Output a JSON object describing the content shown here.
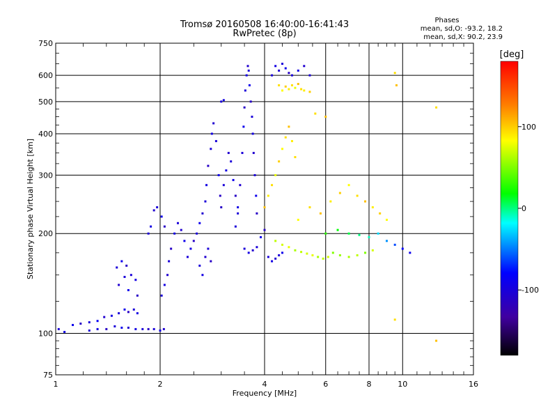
{
  "header": {
    "title_line1": "Tromsø 20160508 16:40:00-16:41:43",
    "title_line2": "RwPretec (8p)",
    "phases_title": "Phases",
    "phases_o": "mean, sd,O: -93.2, 18.2",
    "phases_x": "mean, sd,X: 90.2, 23.9"
  },
  "colorbar": {
    "label": "[deg]",
    "range": [
      -180,
      180
    ],
    "ticks": [
      {
        "value": 100,
        "label": "100"
      },
      {
        "value": 0,
        "label": "0"
      },
      {
        "value": -100,
        "label": "-100"
      }
    ],
    "colors": {
      "top": "#ff0000",
      "stops": [
        "#ff0000",
        "#ff8000",
        "#ffff00",
        "#00ff00",
        "#00ffff",
        "#0000ff",
        "#4000a0",
        "#000000"
      ]
    }
  },
  "chart_data": {
    "type": "scatter",
    "title": "Tromsø 20160508 16:40:00-16:41:43",
    "subtitle": "RwPretec (8p)",
    "xlabel": "Frequency [MHz]",
    "ylabel": "Stationary phase Virtual Height [km]",
    "x_scale": "log",
    "y_scale": "log",
    "xlim": [
      1,
      16
    ],
    "ylim": [
      75,
      750
    ],
    "x_ticks": [
      {
        "value": 1,
        "label": "1"
      },
      {
        "value": 2,
        "label": "2"
      },
      {
        "value": 4,
        "label": "4"
      },
      {
        "value": 6,
        "label": "6"
      },
      {
        "value": 8,
        "label": "8"
      },
      {
        "value": 10,
        "label": "10"
      },
      {
        "value": 16,
        "label": "16"
      }
    ],
    "x_grid": [
      2,
      4,
      6,
      8,
      10
    ],
    "y_ticks": [
      {
        "value": 75,
        "label": "75"
      },
      {
        "value": 100,
        "label": "100"
      },
      {
        "value": 200,
        "label": "200"
      },
      {
        "value": 300,
        "label": "300"
      },
      {
        "value": 400,
        "label": "400"
      },
      {
        "value": 500,
        "label": "500"
      },
      {
        "value": 600,
        "label": "600"
      },
      {
        "value": 750,
        "label": "750"
      }
    ],
    "y_grid": [
      100,
      200,
      300,
      400,
      500,
      600
    ],
    "grid": true,
    "color_variable": "phase [deg]",
    "series": [
      {
        "name": "O",
        "phase_mean": -93.2,
        "phase_sd": 18.2,
        "points": [
          [
            1.02,
            103,
            -100
          ],
          [
            1.06,
            101,
            -95
          ],
          [
            1.12,
            106,
            -90
          ],
          [
            1.18,
            107,
            -110
          ],
          [
            1.25,
            108,
            -100
          ],
          [
            1.32,
            109,
            -85
          ],
          [
            1.38,
            112,
            -105
          ],
          [
            1.45,
            113,
            -95
          ],
          [
            1.52,
            115,
            -100
          ],
          [
            1.58,
            118,
            -90
          ],
          [
            1.62,
            116,
            -110
          ],
          [
            1.68,
            118,
            -100
          ],
          [
            1.72,
            115,
            -95
          ],
          [
            1.25,
            102,
            -100
          ],
          [
            1.32,
            103,
            -95
          ],
          [
            1.4,
            103,
            -110
          ],
          [
            1.48,
            105,
            -100
          ],
          [
            1.55,
            104,
            -90
          ],
          [
            1.62,
            104,
            -105
          ],
          [
            1.7,
            103,
            -95
          ],
          [
            1.78,
            103,
            -100
          ],
          [
            1.85,
            103,
            -110
          ],
          [
            1.92,
            103,
            -100
          ],
          [
            2.0,
            102,
            -95
          ],
          [
            2.05,
            103,
            -105
          ],
          [
            1.5,
            158,
            -100
          ],
          [
            1.55,
            165,
            -90
          ],
          [
            1.6,
            160,
            -110
          ],
          [
            1.65,
            150,
            -100
          ],
          [
            1.7,
            145,
            -95
          ],
          [
            1.52,
            140,
            -105
          ],
          [
            1.58,
            148,
            -100
          ],
          [
            1.62,
            135,
            -90
          ],
          [
            1.72,
            130,
            -110
          ],
          [
            1.85,
            200,
            -100
          ],
          [
            1.88,
            210,
            -95
          ],
          [
            1.92,
            235,
            -105
          ],
          [
            1.96,
            240,
            -100
          ],
          [
            2.02,
            225,
            -90
          ],
          [
            2.06,
            210,
            -110
          ],
          [
            2.02,
            130,
            -100
          ],
          [
            2.06,
            140,
            -95
          ],
          [
            2.1,
            150,
            -105
          ],
          [
            2.12,
            165,
            -100
          ],
          [
            2.15,
            180,
            -110
          ],
          [
            2.2,
            200,
            -95
          ],
          [
            2.25,
            215,
            -100
          ],
          [
            2.3,
            205,
            -105
          ],
          [
            2.35,
            190,
            -90
          ],
          [
            2.4,
            170,
            -100
          ],
          [
            2.45,
            180,
            -95
          ],
          [
            2.5,
            190,
            -110
          ],
          [
            2.55,
            200,
            -100
          ],
          [
            2.6,
            215,
            -90
          ],
          [
            2.65,
            230,
            -105
          ],
          [
            2.7,
            250,
            -100
          ],
          [
            2.72,
            280,
            -95
          ],
          [
            2.75,
            320,
            -110
          ],
          [
            2.8,
            360,
            -100
          ],
          [
            2.82,
            400,
            -95
          ],
          [
            2.85,
            430,
            -105
          ],
          [
            2.9,
            380,
            -100
          ],
          [
            2.95,
            300,
            -90
          ],
          [
            2.98,
            260,
            -110
          ],
          [
            2.6,
            160,
            -100
          ],
          [
            2.65,
            150,
            -95
          ],
          [
            2.7,
            170,
            -105
          ],
          [
            2.75,
            180,
            -100
          ],
          [
            2.8,
            165,
            -110
          ],
          [
            3.0,
            240,
            -110
          ],
          [
            3.05,
            280,
            -100
          ],
          [
            3.1,
            310,
            -95
          ],
          [
            3.15,
            350,
            -105
          ],
          [
            3.2,
            330,
            -100
          ],
          [
            3.25,
            290,
            -90
          ],
          [
            3.3,
            260,
            -110
          ],
          [
            3.35,
            230,
            -100
          ],
          [
            3.0,
            500,
            -100
          ],
          [
            3.05,
            505,
            -95
          ],
          [
            3.3,
            210,
            -100
          ],
          [
            3.35,
            240,
            -95
          ],
          [
            3.4,
            280,
            -105
          ],
          [
            3.45,
            350,
            -100
          ],
          [
            3.48,
            420,
            -90
          ],
          [
            3.5,
            480,
            -110
          ],
          [
            3.52,
            540,
            -100
          ],
          [
            3.55,
            600,
            -95
          ],
          [
            3.58,
            640,
            -105
          ],
          [
            3.6,
            620,
            -100
          ],
          [
            3.62,
            560,
            -90
          ],
          [
            3.65,
            500,
            -110
          ],
          [
            3.68,
            450,
            -100
          ],
          [
            3.7,
            400,
            -95
          ],
          [
            3.72,
            350,
            -105
          ],
          [
            3.75,
            300,
            -100
          ],
          [
            3.78,
            260,
            -90
          ],
          [
            3.8,
            230,
            -110
          ],
          [
            3.5,
            180,
            -100
          ],
          [
            3.6,
            175,
            -95
          ],
          [
            3.7,
            178,
            -105
          ],
          [
            3.8,
            182,
            -100
          ],
          [
            3.9,
            195,
            -90
          ],
          [
            4.0,
            205,
            -110
          ],
          [
            4.1,
            170,
            -100
          ],
          [
            4.2,
            165,
            -95
          ],
          [
            4.3,
            168,
            -105
          ],
          [
            4.4,
            172,
            -100
          ],
          [
            4.5,
            175,
            -90
          ],
          [
            4.2,
            600,
            -100
          ],
          [
            4.3,
            640,
            -95
          ],
          [
            4.4,
            620,
            -105
          ],
          [
            4.5,
            650,
            -100
          ],
          [
            4.6,
            630,
            -90
          ],
          [
            4.7,
            610,
            -110
          ],
          [
            4.8,
            600,
            -100
          ],
          [
            5.0,
            620,
            -95
          ],
          [
            5.2,
            640,
            -105
          ],
          [
            5.4,
            600,
            -100
          ]
        ]
      },
      {
        "name": "X",
        "phase_mean": 90.2,
        "phase_sd": 23.9,
        "points": [
          [
            4.0,
            240,
            110
          ],
          [
            4.1,
            260,
            95
          ],
          [
            4.2,
            280,
            100
          ],
          [
            4.3,
            300,
            85
          ],
          [
            4.4,
            330,
            105
          ],
          [
            4.5,
            360,
            90
          ],
          [
            4.6,
            390,
            100
          ],
          [
            4.7,
            420,
            110
          ],
          [
            4.8,
            380,
            95
          ],
          [
            4.9,
            340,
            100
          ],
          [
            4.4,
            560,
            100
          ],
          [
            4.5,
            540,
            90
          ],
          [
            4.6,
            555,
            105
          ],
          [
            4.7,
            545,
            95
          ],
          [
            4.8,
            560,
            100
          ],
          [
            4.9,
            550,
            85
          ],
          [
            5.0,
            565,
            110
          ],
          [
            5.1,
            545,
            100
          ],
          [
            5.2,
            540,
            95
          ],
          [
            5.4,
            535,
            105
          ],
          [
            4.3,
            190,
            75
          ],
          [
            4.5,
            185,
            80
          ],
          [
            4.7,
            182,
            85
          ],
          [
            4.9,
            178,
            70
          ],
          [
            5.1,
            176,
            75
          ],
          [
            5.3,
            174,
            80
          ],
          [
            5.5,
            172,
            85
          ],
          [
            5.7,
            170,
            70
          ],
          [
            5.9,
            168,
            75
          ],
          [
            6.1,
            170,
            80
          ],
          [
            6.3,
            175,
            60
          ],
          [
            6.6,
            172,
            65
          ],
          [
            7.0,
            170,
            70
          ],
          [
            7.4,
            172,
            75
          ],
          [
            7.8,
            175,
            60
          ],
          [
            8.2,
            178,
            80
          ],
          [
            5.0,
            220,
            90
          ],
          [
            5.4,
            240,
            100
          ],
          [
            5.8,
            230,
            110
          ],
          [
            6.2,
            250,
            95
          ],
          [
            6.6,
            265,
            105
          ],
          [
            7.0,
            280,
            90
          ],
          [
            7.4,
            260,
            100
          ],
          [
            7.8,
            250,
            110
          ],
          [
            8.2,
            240,
            95
          ],
          [
            8.6,
            230,
            105
          ],
          [
            9.0,
            220,
            90
          ],
          [
            6.0,
            200,
            40
          ],
          [
            6.5,
            205,
            30
          ],
          [
            7.0,
            200,
            20
          ],
          [
            7.5,
            198,
            10
          ],
          [
            8.0,
            195,
            0
          ],
          [
            8.5,
            200,
            -20
          ],
          [
            9.0,
            190,
            -40
          ],
          [
            9.5,
            185,
            -60
          ],
          [
            10.0,
            180,
            -80
          ],
          [
            10.5,
            175,
            -90
          ],
          [
            5.6,
            460,
            100
          ],
          [
            6.0,
            450,
            110
          ],
          [
            9.5,
            610,
            100
          ],
          [
            9.6,
            560,
            110
          ],
          [
            12.5,
            480,
            100
          ],
          [
            9.5,
            110,
            100
          ],
          [
            12.5,
            95,
            110
          ]
        ]
      }
    ]
  }
}
